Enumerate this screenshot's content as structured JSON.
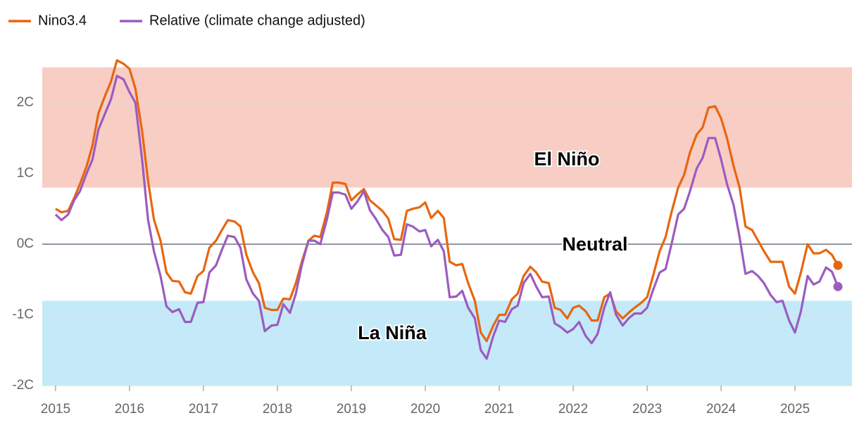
{
  "chart_data": {
    "type": "line",
    "x": [
      2015,
      2015.08,
      2015.17,
      2015.25,
      2015.33,
      2015.42,
      2015.5,
      2015.58,
      2015.67,
      2015.75,
      2015.83,
      2015.92,
      2016,
      2016.08,
      2016.17,
      2016.25,
      2016.33,
      2016.42,
      2016.5,
      2016.58,
      2016.67,
      2016.75,
      2016.83,
      2016.92,
      2017,
      2017.08,
      2017.17,
      2017.25,
      2017.33,
      2017.42,
      2017.5,
      2017.58,
      2017.67,
      2017.75,
      2017.83,
      2017.92,
      2018,
      2018.08,
      2018.17,
      2018.25,
      2018.33,
      2018.42,
      2018.5,
      2018.58,
      2018.67,
      2018.75,
      2018.83,
      2018.92,
      2019,
      2019.08,
      2019.17,
      2019.25,
      2019.33,
      2019.42,
      2019.5,
      2019.58,
      2019.67,
      2019.75,
      2019.83,
      2019.92,
      2020,
      2020.08,
      2020.17,
      2020.25,
      2020.33,
      2020.42,
      2020.5,
      2020.58,
      2020.67,
      2020.75,
      2020.83,
      2020.92,
      2021,
      2021.08,
      2021.17,
      2021.25,
      2021.33,
      2021.42,
      2021.5,
      2021.58,
      2021.67,
      2021.75,
      2021.83,
      2021.92,
      2022,
      2022.08,
      2022.17,
      2022.25,
      2022.33,
      2022.42,
      2022.5,
      2022.58,
      2022.67,
      2022.75,
      2022.83,
      2022.92,
      2023,
      2023.08,
      2023.17,
      2023.25,
      2023.33,
      2023.42,
      2023.5,
      2023.58,
      2023.67,
      2023.75,
      2023.83,
      2023.92,
      2024,
      2024.08,
      2024.17,
      2024.25,
      2024.33,
      2024.42,
      2024.5,
      2024.58,
      2024.67,
      2024.75,
      2024.83,
      2024.92,
      2025,
      2025.08,
      2025.17,
      2025.25,
      2025.33,
      2025.42,
      2025.5,
      2025.58
    ],
    "series": [
      {
        "name": "Nino3.4",
        "color": "#e8660f",
        "values": [
          0.5,
          0.45,
          0.47,
          0.65,
          0.85,
          1.1,
          1.4,
          1.85,
          2.1,
          2.3,
          2.6,
          2.55,
          2.48,
          2.2,
          1.6,
          0.9,
          0.35,
          0.05,
          -0.4,
          -0.52,
          -0.53,
          -0.68,
          -0.7,
          -0.45,
          -0.38,
          -0.05,
          0.05,
          0.2,
          0.34,
          0.32,
          0.25,
          -0.15,
          -0.4,
          -0.55,
          -0.9,
          -0.93,
          -0.93,
          -0.77,
          -0.78,
          -0.55,
          -0.25,
          0.05,
          0.12,
          0.1,
          0.45,
          0.87,
          0.87,
          0.85,
          0.62,
          0.7,
          0.78,
          0.62,
          0.55,
          0.47,
          0.36,
          0.07,
          0.06,
          0.47,
          0.5,
          0.52,
          0.59,
          0.37,
          0.47,
          0.37,
          -0.25,
          -0.3,
          -0.28,
          -0.55,
          -0.8,
          -1.25,
          -1.37,
          -1.15,
          -1.0,
          -1.0,
          -0.78,
          -0.7,
          -0.45,
          -0.32,
          -0.4,
          -0.53,
          -0.55,
          -0.9,
          -0.93,
          -1.05,
          -0.9,
          -0.87,
          -0.95,
          -1.08,
          -1.08,
          -0.75,
          -0.7,
          -0.95,
          -1.05,
          -0.97,
          -0.9,
          -0.83,
          -0.75,
          -0.45,
          -0.1,
          0.1,
          0.45,
          0.8,
          0.98,
          1.3,
          1.55,
          1.65,
          1.93,
          1.95,
          1.78,
          1.5,
          1.1,
          0.8,
          0.25,
          0.2,
          0.05,
          -0.1,
          -0.25,
          -0.25,
          -0.25,
          -0.6,
          -0.7,
          -0.4,
          0.0,
          -0.13,
          -0.13,
          -0.08,
          -0.15,
          -0.3
        ]
      },
      {
        "name": "Relative (climate change adjusted)",
        "color": "#9b5cc0",
        "values": [
          0.42,
          0.34,
          0.42,
          0.62,
          0.75,
          1.0,
          1.2,
          1.62,
          1.85,
          2.05,
          2.38,
          2.33,
          2.15,
          2.0,
          1.2,
          0.35,
          -0.1,
          -0.45,
          -0.88,
          -0.96,
          -0.92,
          -1.1,
          -1.1,
          -0.83,
          -0.82,
          -0.4,
          -0.3,
          -0.08,
          0.12,
          0.1,
          -0.05,
          -0.5,
          -0.7,
          -0.8,
          -1.23,
          -1.15,
          -1.14,
          -0.85,
          -0.97,
          -0.7,
          -0.3,
          0.05,
          0.05,
          0.0,
          0.35,
          0.73,
          0.73,
          0.7,
          0.5,
          0.6,
          0.75,
          0.48,
          0.36,
          0.2,
          0.1,
          -0.16,
          -0.15,
          0.28,
          0.25,
          0.18,
          0.2,
          -0.03,
          0.06,
          -0.1,
          -0.75,
          -0.74,
          -0.66,
          -0.9,
          -1.05,
          -1.5,
          -1.62,
          -1.3,
          -1.08,
          -1.1,
          -0.92,
          -0.87,
          -0.55,
          -0.42,
          -0.6,
          -0.75,
          -0.74,
          -1.12,
          -1.17,
          -1.25,
          -1.2,
          -1.1,
          -1.3,
          -1.4,
          -1.27,
          -0.9,
          -0.68,
          -1.0,
          -1.15,
          -1.05,
          -0.98,
          -0.98,
          -0.9,
          -0.65,
          -0.4,
          -0.35,
          0.0,
          0.42,
          0.5,
          0.75,
          1.07,
          1.22,
          1.5,
          1.5,
          1.2,
          0.85,
          0.55,
          0.1,
          -0.42,
          -0.38,
          -0.45,
          -0.55,
          -0.72,
          -0.82,
          -0.8,
          -1.08,
          -1.25,
          -0.95,
          -0.45,
          -0.57,
          -0.53,
          -0.33,
          -0.39,
          -0.6
        ]
      }
    ],
    "bands": [
      {
        "label": "El Niño",
        "from": 0.8,
        "to": 2.5,
        "color": "#f8cdc4"
      },
      {
        "label": "La Niña",
        "from": -0.8,
        "to": -2,
        "color": "#c4eafa"
      }
    ],
    "baseline_label": "Neutral",
    "xlim": [
      2014.82,
      2025.77
    ],
    "xticks": [
      2015,
      2016,
      2017,
      2018,
      2019,
      2020,
      2021,
      2022,
      2023,
      2024,
      2025
    ],
    "ylim": [
      -2,
      2.7
    ],
    "yticks": [
      {
        "value": 2,
        "label": "2C"
      },
      {
        "value": 1,
        "label": "1C"
      },
      {
        "value": 0,
        "label": "0C"
      },
      {
        "value": -1,
        "label": "-1C"
      },
      {
        "value": -2,
        "label": "-2C"
      }
    ],
    "grid": true,
    "legend": "top-left"
  }
}
